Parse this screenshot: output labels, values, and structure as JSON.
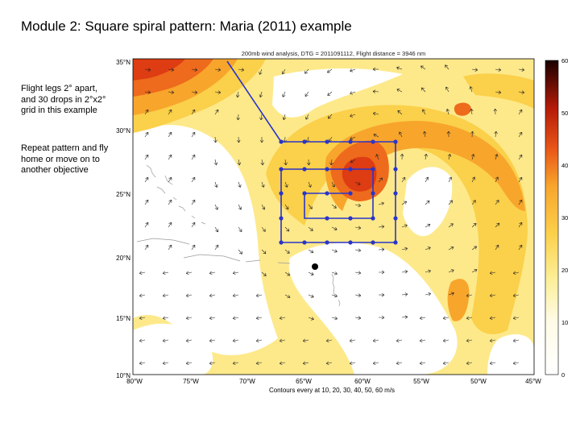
{
  "slide": {
    "title": "Module 2:  Square spiral pattern: Maria (2011) example",
    "notes": [
      "Flight legs 2° apart, and 30 drops in 2°x2° grid in this example",
      "Repeat pattern and fly home or move on to another objective"
    ]
  },
  "map": {
    "header": "200mb wind analysis, DTG = 2011091112, Flight distance = 3946 nm",
    "footer": "Contours every at 10, 20, 30, 40, 50, 60 m/s",
    "lat_labels": [
      "35°N",
      "30°N",
      "25°N",
      "20°N",
      "15°N",
      "10°N"
    ],
    "lon_labels": [
      "80°W",
      "75°W",
      "70°W",
      "65°W",
      "60°W",
      "55°W",
      "50°W",
      "45°W"
    ],
    "colorbar_labels": [
      "60",
      "50",
      "40",
      "30",
      "20",
      "10",
      "0"
    ],
    "colors": {
      "fill_10": "#fde98a",
      "fill_20": "#fbd04a",
      "fill_30": "#f8a52c",
      "fill_40": "#ee6a1c",
      "fill_50": "#de3c12",
      "flight_track": "#2a35c9",
      "land": "#9a9a9a"
    }
  }
}
